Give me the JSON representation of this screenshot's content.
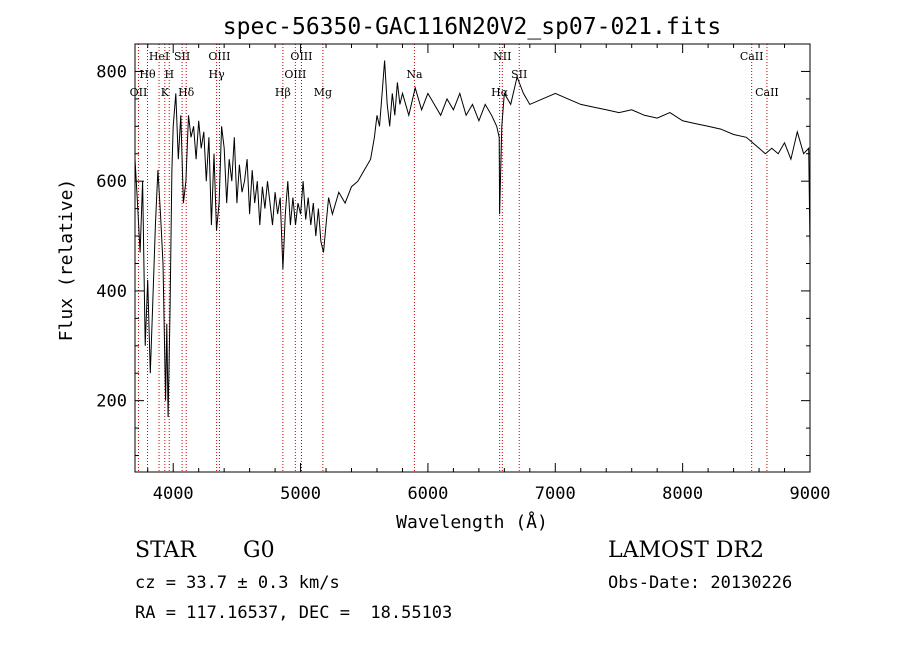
{
  "chart_data": {
    "type": "line",
    "title": "spec-56350-GAC116N20V2_sp07-021.fits",
    "xlabel": "Wavelength (Å)",
    "ylabel": "Flux (relative)",
    "xlim": [
      3700,
      9000
    ],
    "ylim": [
      70,
      850
    ],
    "xticks": [
      4000,
      5000,
      6000,
      7000,
      8000,
      9000
    ],
    "yticks": [
      200,
      400,
      600,
      800
    ],
    "grid": false,
    "line_color": "#000000",
    "marker_color": "#cc0000",
    "series": [
      {
        "points": [
          [
            3700,
            640
          ],
          [
            3720,
            560
          ],
          [
            3740,
            470
          ],
          [
            3760,
            600
          ],
          [
            3780,
            300
          ],
          [
            3800,
            420
          ],
          [
            3820,
            250
          ],
          [
            3840,
            380
          ],
          [
            3860,
            520
          ],
          [
            3880,
            620
          ],
          [
            3900,
            540
          ],
          [
            3920,
            450
          ],
          [
            3940,
            200
          ],
          [
            3950,
            340
          ],
          [
            3960,
            170
          ],
          [
            3975,
            360
          ],
          [
            3990,
            620
          ],
          [
            4000,
            700
          ],
          [
            4020,
            760
          ],
          [
            4040,
            640
          ],
          [
            4060,
            720
          ],
          [
            4080,
            560
          ],
          [
            4100,
            600
          ],
          [
            4120,
            720
          ],
          [
            4140,
            680
          ],
          [
            4160,
            700
          ],
          [
            4180,
            640
          ],
          [
            4200,
            710
          ],
          [
            4220,
            660
          ],
          [
            4240,
            690
          ],
          [
            4260,
            600
          ],
          [
            4280,
            680
          ],
          [
            4300,
            520
          ],
          [
            4320,
            650
          ],
          [
            4340,
            510
          ],
          [
            4360,
            560
          ],
          [
            4380,
            700
          ],
          [
            4400,
            660
          ],
          [
            4420,
            560
          ],
          [
            4440,
            640
          ],
          [
            4460,
            600
          ],
          [
            4480,
            680
          ],
          [
            4500,
            560
          ],
          [
            4520,
            630
          ],
          [
            4540,
            580
          ],
          [
            4560,
            600
          ],
          [
            4580,
            640
          ],
          [
            4600,
            540
          ],
          [
            4620,
            620
          ],
          [
            4640,
            560
          ],
          [
            4660,
            600
          ],
          [
            4680,
            520
          ],
          [
            4700,
            590
          ],
          [
            4720,
            550
          ],
          [
            4740,
            600
          ],
          [
            4760,
            560
          ],
          [
            4780,
            520
          ],
          [
            4800,
            580
          ],
          [
            4820,
            540
          ],
          [
            4840,
            570
          ],
          [
            4861,
            440
          ],
          [
            4880,
            540
          ],
          [
            4900,
            600
          ],
          [
            4920,
            520
          ],
          [
            4940,
            570
          ],
          [
            4960,
            520
          ],
          [
            4980,
            560
          ],
          [
            5000,
            540
          ],
          [
            5020,
            600
          ],
          [
            5040,
            530
          ],
          [
            5060,
            570
          ],
          [
            5080,
            520
          ],
          [
            5100,
            560
          ],
          [
            5120,
            500
          ],
          [
            5140,
            550
          ],
          [
            5160,
            490
          ],
          [
            5180,
            470
          ],
          [
            5200,
            520
          ],
          [
            5220,
            570
          ],
          [
            5250,
            540
          ],
          [
            5300,
            580
          ],
          [
            5350,
            560
          ],
          [
            5400,
            590
          ],
          [
            5450,
            600
          ],
          [
            5500,
            620
          ],
          [
            5550,
            640
          ],
          [
            5580,
            680
          ],
          [
            5600,
            720
          ],
          [
            5620,
            700
          ],
          [
            5640,
            760
          ],
          [
            5660,
            820
          ],
          [
            5680,
            740
          ],
          [
            5700,
            700
          ],
          [
            5720,
            760
          ],
          [
            5740,
            720
          ],
          [
            5760,
            780
          ],
          [
            5780,
            740
          ],
          [
            5800,
            760
          ],
          [
            5850,
            720
          ],
          [
            5900,
            770
          ],
          [
            5950,
            730
          ],
          [
            6000,
            760
          ],
          [
            6050,
            740
          ],
          [
            6100,
            720
          ],
          [
            6150,
            750
          ],
          [
            6200,
            730
          ],
          [
            6250,
            760
          ],
          [
            6300,
            720
          ],
          [
            6350,
            740
          ],
          [
            6400,
            710
          ],
          [
            6450,
            740
          ],
          [
            6500,
            720
          ],
          [
            6540,
            700
          ],
          [
            6560,
            680
          ],
          [
            6563,
            540
          ],
          [
            6580,
            700
          ],
          [
            6600,
            760
          ],
          [
            6650,
            740
          ],
          [
            6700,
            790
          ],
          [
            6750,
            760
          ],
          [
            6800,
            740
          ],
          [
            6900,
            750
          ],
          [
            7000,
            760
          ],
          [
            7100,
            750
          ],
          [
            7200,
            740
          ],
          [
            7300,
            735
          ],
          [
            7400,
            730
          ],
          [
            7500,
            725
          ],
          [
            7600,
            730
          ],
          [
            7700,
            720
          ],
          [
            7800,
            715
          ],
          [
            7900,
            725
          ],
          [
            8000,
            710
          ],
          [
            8100,
            705
          ],
          [
            8200,
            700
          ],
          [
            8300,
            695
          ],
          [
            8400,
            685
          ],
          [
            8500,
            680
          ],
          [
            8550,
            670
          ],
          [
            8600,
            660
          ],
          [
            8650,
            650
          ],
          [
            8700,
            660
          ],
          [
            8750,
            650
          ],
          [
            8800,
            670
          ],
          [
            8850,
            640
          ],
          [
            8900,
            690
          ],
          [
            8950,
            650
          ],
          [
            8990,
            660
          ],
          [
            9000,
            480
          ]
        ]
      }
    ],
    "line_markers": [
      {
        "label": "OII",
        "x": 3727,
        "row": 3
      },
      {
        "label": "Hθ",
        "x": 3798,
        "row": 2
      },
      {
        "label": "HeI",
        "x": 3889,
        "row": 1
      },
      {
        "label": "K",
        "x": 3934,
        "row": 3
      },
      {
        "label": "H",
        "x": 3969,
        "row": 2
      },
      {
        "label": "SII",
        "x": 4070,
        "row": 1
      },
      {
        "label": "Hδ",
        "x": 4102,
        "row": 3
      },
      {
        "label": "OIII",
        "x": 4363,
        "row": 1
      },
      {
        "label": "Hγ",
        "x": 4341,
        "row": 2
      },
      {
        "label": "Hβ",
        "x": 4861,
        "row": 3
      },
      {
        "label": "OIII",
        "x": 4959,
        "row": 2
      },
      {
        "label": "OIII",
        "x": 5007,
        "row": 1
      },
      {
        "label": "Mg",
        "x": 5175,
        "row": 3
      },
      {
        "label": "Na",
        "x": 5894,
        "row": 2
      },
      {
        "label": "NII",
        "x": 6584,
        "row": 1
      },
      {
        "label": "Hα",
        "x": 6563,
        "row": 3
      },
      {
        "label": "SII",
        "x": 6717,
        "row": 2
      },
      {
        "label": "CaII",
        "x": 8542,
        "row": 1
      },
      {
        "label": "CaII",
        "x": 8662,
        "row": 3
      }
    ]
  },
  "info": {
    "object_class": "STAR",
    "subclass": "G0",
    "survey": "LAMOST DR2",
    "redshift": "cz = 33.7 ± 0.3 km/s",
    "obs_date": "Obs-Date: 20130226",
    "coords": "RA = 117.16537, DEC =  18.55103"
  }
}
